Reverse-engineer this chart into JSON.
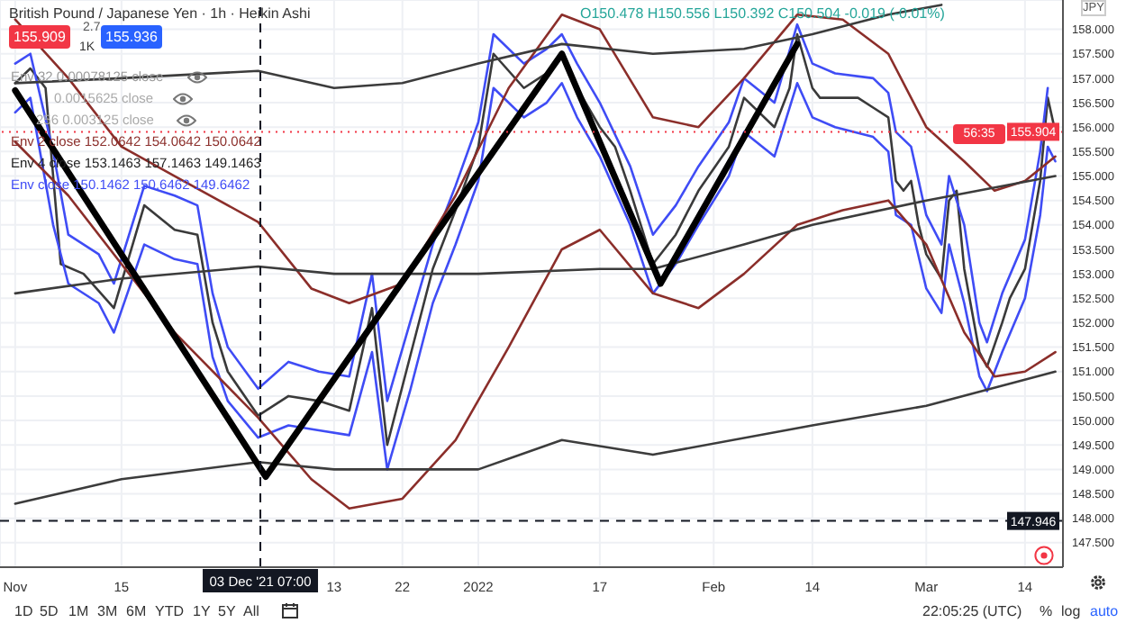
{
  "chart_data": {
    "type": "line",
    "title": "British Pound / Japanese Yen · 1h · Heikin Ashi",
    "xlim": [
      "2021-10-30",
      "2022-03-19"
    ],
    "xticks": [
      {
        "value": "2021-11-01",
        "label": "Nov"
      },
      {
        "value": "2021-11-15",
        "label": "15"
      },
      {
        "value": "2021-12-13",
        "label": "13"
      },
      {
        "value": "2021-12-22",
        "label": "22"
      },
      {
        "value": "2022-01-01",
        "label": "2022"
      },
      {
        "value": "2022-01-17",
        "label": "17"
      },
      {
        "value": "2022-02-01",
        "label": "Feb"
      },
      {
        "value": "2022-02-14",
        "label": "14"
      },
      {
        "value": "2022-03-01",
        "label": "Mar"
      },
      {
        "value": "2022-03-14",
        "label": "14"
      }
    ],
    "ylim": [
      147.0,
      158.6
    ],
    "yticks": [
      {
        "value": 147.5,
        "label": "147.500"
      },
      {
        "value": 148,
        "label": "148.000"
      },
      {
        "value": 148.5,
        "label": "148.500"
      },
      {
        "value": 149,
        "label": "149.000"
      },
      {
        "value": 149.5,
        "label": "149.500"
      },
      {
        "value": 150,
        "label": "150.000"
      },
      {
        "value": 150.5,
        "label": "150.500"
      },
      {
        "value": 151,
        "label": "151.000"
      },
      {
        "value": 151.5,
        "label": "151.500"
      },
      {
        "value": 152,
        "label": "152.000"
      },
      {
        "value": 152.5,
        "label": "152.500"
      },
      {
        "value": 153,
        "label": "153.000"
      },
      {
        "value": 153.5,
        "label": "153.500"
      },
      {
        "value": 154,
        "label": "154.000"
      },
      {
        "value": 154.5,
        "label": "154.500"
      },
      {
        "value": 155,
        "label": "155.000"
      },
      {
        "value": 155.5,
        "label": "155.500"
      },
      {
        "value": 156,
        "label": "156.000"
      },
      {
        "value": 156.5,
        "label": "156.500"
      },
      {
        "value": 157,
        "label": "157.000"
      },
      {
        "value": 157.5,
        "label": "157.500"
      },
      {
        "value": 158,
        "label": "158.000"
      }
    ],
    "grid": true,
    "series": [
      {
        "color": "#3a3a3a",
        "x": [
          "2021-11-01",
          "2021-11-03",
          "2021-11-05",
          "2021-11-07",
          "2021-11-10",
          "2021-11-14",
          "2021-11-18",
          "2021-11-22",
          "2021-11-25",
          "2021-11-27",
          "2021-11-29",
          "2021-12-03",
          "2021-12-07",
          "2021-12-11",
          "2021-12-15",
          "2021-12-18",
          "2021-12-20",
          "2021-12-23",
          "2021-12-26",
          "2021-12-29",
          "2022-01-01",
          "2022-01-03",
          "2022-01-07",
          "2022-01-10",
          "2022-01-12",
          "2022-01-14",
          "2022-01-17",
          "2022-01-19",
          "2022-01-21",
          "2022-01-24",
          "2022-01-27",
          "2022-01-30",
          "2022-02-03",
          "2022-02-05",
          "2022-02-09",
          "2022-02-11",
          "2022-02-12",
          "2022-02-14",
          "2022-02-15",
          "2022-02-17",
          "2022-02-20",
          "2022-02-22",
          "2022-02-24",
          "2022-02-25",
          "2022-02-26",
          "2022-02-27",
          "2022-02-28",
          "2022-03-01",
          "2022-03-03",
          "2022-03-04",
          "2022-03-05",
          "2022-03-06",
          "2022-03-08",
          "2022-03-09",
          "2022-03-11",
          "2022-03-12",
          "2022-03-14",
          "2022-03-15",
          "2022-03-16",
          "2022-03-17",
          "2022-03-18"
        ],
        "values": [
          156.9,
          157.2,
          156.8,
          153.2,
          153.0,
          152.3,
          154.4,
          153.9,
          153.8,
          152.0,
          151.0,
          150.1,
          150.5,
          150.4,
          150.2,
          152.3,
          149.5,
          151.3,
          153.1,
          154.3,
          155.6,
          157.5,
          156.8,
          157.1,
          157.5,
          156.8,
          156.0,
          155.6,
          154.7,
          153.2,
          153.8,
          154.7,
          155.6,
          156.6,
          156.0,
          156.8,
          157.9,
          156.8,
          156.6,
          156.6,
          156.6,
          156.4,
          156.2,
          154.9,
          154.7,
          154.9,
          154.0,
          153.4,
          152.9,
          154.5,
          154.7,
          153.1,
          151.4,
          151.1,
          152.0,
          152.5,
          153.1,
          154.0,
          154.9,
          156.6,
          155.9
        ]
      },
      {
        "color": "#3f4cf5",
        "x": [
          "2021-11-01",
          "2021-11-03",
          "2021-11-06",
          "2021-11-08",
          "2021-11-12",
          "2021-11-14",
          "2021-11-18",
          "2021-11-22",
          "2021-11-25",
          "2021-11-27",
          "2021-11-29",
          "2021-12-03",
          "2021-12-07",
          "2021-12-11",
          "2021-12-15",
          "2021-12-18",
          "2021-12-20",
          "2021-12-23",
          "2021-12-26",
          "2021-12-29",
          "2022-01-01",
          "2022-01-03",
          "2022-01-07",
          "2022-01-10",
          "2022-01-12",
          "2022-01-14",
          "2022-01-17",
          "2022-01-21",
          "2022-01-24",
          "2022-01-27",
          "2022-01-30",
          "2022-02-03",
          "2022-02-05",
          "2022-02-09",
          "2022-02-12",
          "2022-02-14",
          "2022-02-17",
          "2022-02-22",
          "2022-02-24",
          "2022-02-25",
          "2022-02-27",
          "2022-03-01",
          "2022-03-03",
          "2022-03-04",
          "2022-03-06",
          "2022-03-08",
          "2022-03-09",
          "2022-03-11",
          "2022-03-14",
          "2022-03-16",
          "2022-03-17"
        ],
        "values": [
          157.3,
          157.5,
          155.5,
          153.8,
          153.4,
          152.8,
          154.8,
          154.6,
          154.4,
          152.6,
          151.5,
          150.65,
          151.2,
          151.0,
          150.9,
          153.0,
          150.4,
          152.0,
          153.6,
          154.8,
          156.1,
          157.9,
          157.3,
          157.6,
          157.9,
          157.3,
          156.5,
          155.2,
          153.8,
          154.4,
          155.2,
          156.1,
          157.0,
          156.5,
          158.1,
          157.3,
          157.1,
          157.0,
          156.7,
          155.9,
          155.6,
          154.2,
          153.6,
          155.0,
          154.0,
          152.0,
          151.6,
          152.6,
          153.7,
          155.5,
          156.8
        ]
      },
      {
        "color": "#3f4cf5",
        "x": [
          "2021-11-01",
          "2021-11-03",
          "2021-11-06",
          "2021-11-08",
          "2021-11-12",
          "2021-11-14",
          "2021-11-18",
          "2021-11-22",
          "2021-11-25",
          "2021-11-27",
          "2021-11-29",
          "2021-12-03",
          "2021-12-07",
          "2021-12-11",
          "2021-12-15",
          "2021-12-18",
          "2021-12-20",
          "2021-12-23",
          "2021-12-26",
          "2021-12-29",
          "2022-01-01",
          "2022-01-03",
          "2022-01-07",
          "2022-01-10",
          "2022-01-12",
          "2022-01-14",
          "2022-01-17",
          "2022-01-21",
          "2022-01-24",
          "2022-01-27",
          "2022-01-30",
          "2022-02-03",
          "2022-02-05",
          "2022-02-09",
          "2022-02-12",
          "2022-02-14",
          "2022-02-17",
          "2022-02-22",
          "2022-02-24",
          "2022-02-25",
          "2022-02-27",
          "2022-03-01",
          "2022-03-03",
          "2022-03-04",
          "2022-03-06",
          "2022-03-08",
          "2022-03-09",
          "2022-03-11",
          "2022-03-14",
          "2022-03-16",
          "2022-03-17",
          "2022-03-18"
        ],
        "values": [
          156.3,
          156.6,
          154.0,
          152.8,
          152.4,
          151.8,
          153.6,
          153.3,
          153.2,
          151.3,
          150.4,
          149.65,
          149.9,
          149.8,
          149.7,
          151.4,
          149.0,
          150.6,
          152.4,
          153.6,
          154.9,
          156.8,
          156.2,
          156.5,
          156.9,
          156.2,
          155.4,
          154.0,
          152.6,
          153.2,
          154.0,
          155.0,
          155.9,
          155.4,
          156.9,
          156.2,
          156.0,
          155.8,
          155.5,
          154.2,
          154.0,
          152.7,
          152.2,
          153.6,
          152.4,
          150.9,
          150.6,
          151.4,
          152.5,
          154.2,
          155.6,
          155.3
        ]
      },
      {
        "color": "#8b2e2a",
        "x": [
          "2021-11-01",
          "2021-11-08",
          "2021-11-15",
          "2021-11-22",
          "2021-12-03",
          "2021-12-10",
          "2021-12-15",
          "2021-12-22",
          "2021-12-29",
          "2022-01-05",
          "2022-01-12",
          "2022-01-17",
          "2022-01-24",
          "2022-01-30",
          "2022-02-05",
          "2022-02-12",
          "2022-02-18",
          "2022-02-24",
          "2022-03-01",
          "2022-03-06",
          "2022-03-10",
          "2022-03-14",
          "2022-03-18"
        ],
        "values": [
          158.2,
          157.0,
          155.6,
          155.0,
          154.06,
          152.7,
          152.4,
          152.8,
          154.6,
          156.8,
          158.3,
          158.0,
          156.2,
          156.0,
          157.0,
          158.3,
          158.2,
          157.5,
          156.0,
          155.3,
          154.7,
          154.9,
          155.4
        ]
      },
      {
        "color": "#8b2e2a",
        "x": [
          "2021-11-01",
          "2021-11-08",
          "2021-11-15",
          "2021-11-22",
          "2021-12-03",
          "2021-12-10",
          "2021-12-15",
          "2021-12-22",
          "2021-12-29",
          "2022-01-05",
          "2022-01-12",
          "2022-01-17",
          "2022-01-24",
          "2022-01-30",
          "2022-02-05",
          "2022-02-12",
          "2022-02-18",
          "2022-02-24",
          "2022-03-01",
          "2022-03-06",
          "2022-03-10",
          "2022-03-14",
          "2022-03-18"
        ],
        "values": [
          155.7,
          154.6,
          153.2,
          151.8,
          150.06,
          148.8,
          148.2,
          148.4,
          149.6,
          151.5,
          153.5,
          153.9,
          152.6,
          152.3,
          153.0,
          154.0,
          154.3,
          154.5,
          153.6,
          151.8,
          150.9,
          151.0,
          151.4
        ]
      },
      {
        "color": "#3c3c3c",
        "x": [
          "2021-11-01",
          "2021-11-15",
          "2021-12-03",
          "2021-12-13",
          "2021-12-22",
          "2022-01-01",
          "2022-01-12",
          "2022-01-24",
          "2022-02-05",
          "2022-02-14",
          "2022-02-24",
          "2022-03-03"
        ],
        "values": [
          156.9,
          157.0,
          157.15,
          156.8,
          156.9,
          157.3,
          157.7,
          157.5,
          157.6,
          157.9,
          158.3,
          158.5
        ]
      },
      {
        "color": "#3c3c3c",
        "x": [
          "2021-11-01",
          "2021-11-15",
          "2021-12-03",
          "2021-12-13",
          "2022-01-01",
          "2022-01-17",
          "2022-01-24",
          "2022-02-05",
          "2022-02-14",
          "2022-03-01",
          "2022-03-18"
        ],
        "values": [
          152.6,
          152.9,
          153.15,
          153.0,
          153.0,
          153.1,
          153.1,
          153.6,
          154.0,
          154.5,
          155.0
        ]
      },
      {
        "color": "#3c3c3c",
        "x": [
          "2021-11-01",
          "2021-11-15",
          "2021-12-03",
          "2021-12-13",
          "2022-01-01",
          "2022-01-12",
          "2022-01-24",
          "2022-02-14",
          "2022-03-01",
          "2022-03-18"
        ],
        "values": [
          148.3,
          148.8,
          149.15,
          149.0,
          149.0,
          149.6,
          149.3,
          149.9,
          150.3,
          151.0
        ]
      },
      {
        "color": "#000000",
        "x": [
          "2021-11-01",
          "2021-12-04",
          "2022-01-12",
          "2022-01-25",
          "2022-02-12"
        ],
        "values": [
          156.75,
          148.85,
          157.5,
          152.8,
          157.7
        ]
      }
    ],
    "ref_lines": [
      {
        "axis": "y",
        "value": 155.904,
        "label": "155.904",
        "color": "#f23645",
        "line_style": "dotted"
      },
      {
        "axis": "y",
        "value": 147.946,
        "label": "147.946",
        "color": "#131722",
        "line_style": "dashed"
      },
      {
        "axis": "x",
        "value": "2021-12-03T07:00",
        "label": "03 Dec '21 07:00",
        "color": "#131722",
        "line_style": "dashed"
      }
    ],
    "annotations": [
      "O150.478 H150.556 L150.392 C150.504 -0.019 (-0.01%)",
      "155.909",
      "2.7",
      "1K",
      "155.936",
      "Env 32 0.00078125 close",
      "0.0015625 close",
      "256 0.003125 close",
      "Env 2 close 152.0642 154.0642 150.0642",
      "Env 4 close 153.1463 157.1463 149.1463",
      "Env close 150.1462 150.6462 149.6462",
      "JPY",
      "56:35",
      "1D",
      "5D",
      "1M",
      "3M",
      "6M",
      "YTD",
      "1Y",
      "5Y",
      "All",
      "22:05:25 (UTC)",
      "%",
      "log",
      "auto"
    ]
  }
}
